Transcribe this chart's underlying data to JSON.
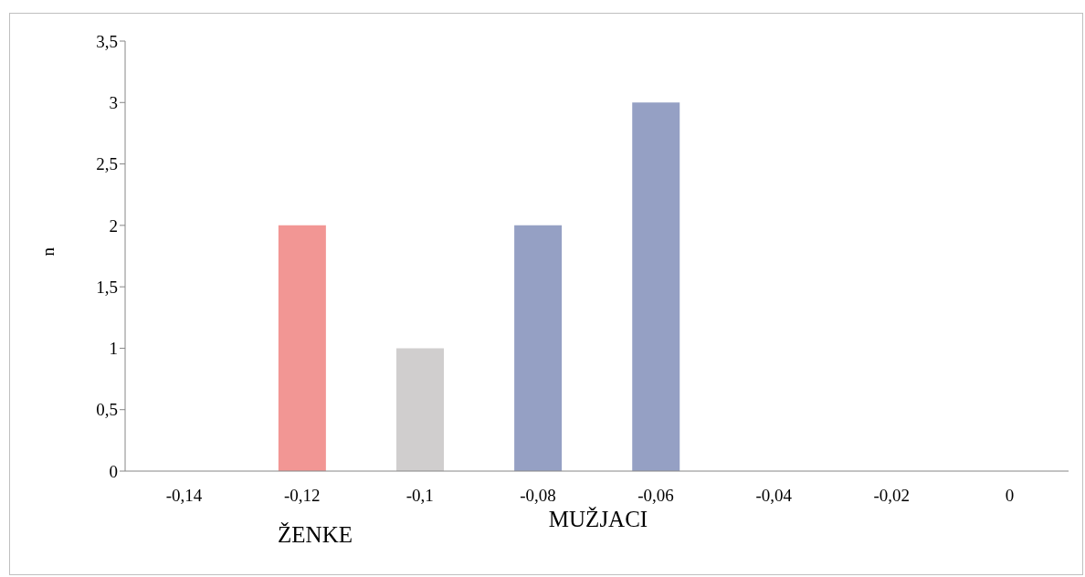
{
  "chart_data": {
    "type": "bar",
    "ylabel": "n",
    "categories": [
      "-0,14",
      "-0,12",
      "-0,1",
      "-0,08",
      "-0,06",
      "-0,04",
      "-0,02",
      "0"
    ],
    "values": [
      0,
      2,
      1,
      2,
      3,
      0,
      0,
      0
    ],
    "colors": [
      "#95a0c4",
      "#f29694",
      "#d0cece",
      "#95a0c4",
      "#95a0c4",
      "#95a0c4",
      "#95a0c4",
      "#95a0c4"
    ],
    "ylim": [
      0,
      3.5
    ],
    "yticks": [
      {
        "value": 0,
        "label": "0"
      },
      {
        "value": 0.5,
        "label": "0,5"
      },
      {
        "value": 1,
        "label": "1"
      },
      {
        "value": 1.5,
        "label": "1,5"
      },
      {
        "value": 2,
        "label": "2"
      },
      {
        "value": 2.5,
        "label": "2,5"
      },
      {
        "value": 3,
        "label": "3"
      },
      {
        "value": 3.5,
        "label": "3,5"
      }
    ],
    "grid": false,
    "legend": false,
    "annotations": [
      "ŽENKE",
      "MUŽJACI"
    ]
  }
}
